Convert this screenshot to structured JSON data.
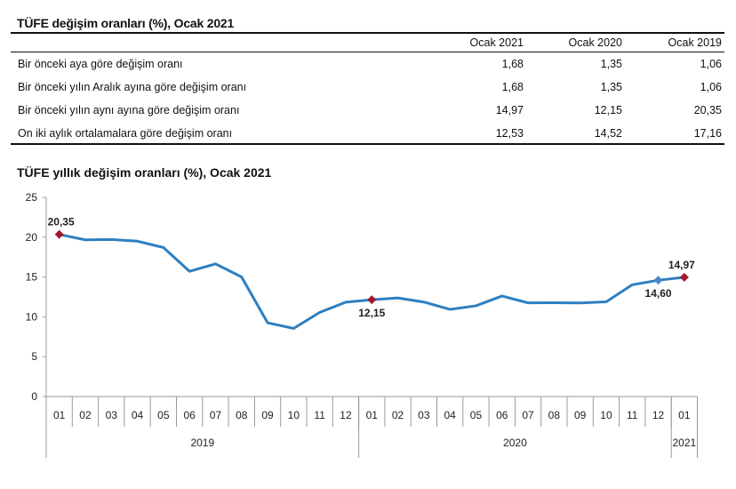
{
  "table": {
    "title": "TÜFE değişim oranları (%), Ocak 2021",
    "columns": [
      "Ocak 2021",
      "Ocak 2020",
      "Ocak 2019"
    ],
    "rows": [
      {
        "label": "Bir önceki aya göre değişim oranı",
        "values": [
          "1,68",
          "1,35",
          "1,06"
        ]
      },
      {
        "label": "Bir önceki yılın Aralık ayına göre değişim oranı",
        "values": [
          "1,68",
          "1,35",
          "1,06"
        ]
      },
      {
        "label": "Bir önceki yılın aynı ayına göre değişim oranı",
        "values": [
          "14,97",
          "12,15",
          "20,35"
        ]
      },
      {
        "label": "On iki aylık ortalamalara göre değişim oranı",
        "values": [
          "12,53",
          "14,52",
          "17,16"
        ]
      }
    ]
  },
  "chart_data": {
    "type": "line",
    "title": "TÜFE yıllık değişim oranları (%), Ocak 2021",
    "ylim": [
      0,
      25
    ],
    "yticks": [
      0,
      5,
      10,
      15,
      20,
      25
    ],
    "months": [
      "01",
      "02",
      "03",
      "04",
      "05",
      "06",
      "07",
      "08",
      "09",
      "10",
      "11",
      "12",
      "01",
      "02",
      "03",
      "04",
      "05",
      "06",
      "07",
      "08",
      "09",
      "10",
      "11",
      "12",
      "01"
    ],
    "years": [
      {
        "label": "2019",
        "count": 12
      },
      {
        "label": "2020",
        "count": 12
      },
      {
        "label": "2021",
        "count": 1
      }
    ],
    "values": [
      20.35,
      19.67,
      19.71,
      19.5,
      18.71,
      15.72,
      16.65,
      15.01,
      9.26,
      8.55,
      10.56,
      11.84,
      12.15,
      12.37,
      11.86,
      10.94,
      11.39,
      12.62,
      11.76,
      11.77,
      11.75,
      11.89,
      14.03,
      14.6,
      14.97
    ],
    "line_color": "#2e7fc0",
    "annotations": [
      {
        "index": 0,
        "label": "20,35",
        "color": "#a3192b",
        "pos": "above"
      },
      {
        "index": 12,
        "label": "12,15",
        "color": "#a3192b",
        "pos": "below"
      },
      {
        "index": 23,
        "label": "14,60",
        "color": "#4a87c9",
        "pos": "below"
      },
      {
        "index": 24,
        "label": "14,97",
        "color": "#a3192b",
        "pos": "above"
      }
    ]
  }
}
